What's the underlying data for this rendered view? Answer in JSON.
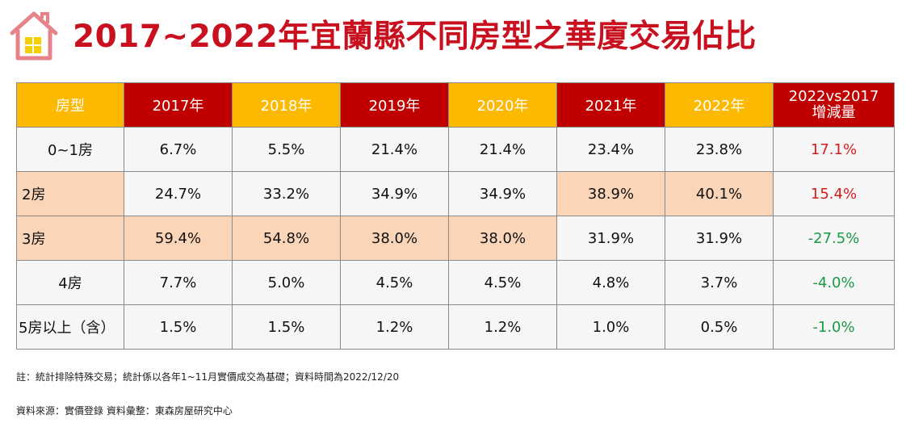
{
  "title": "2017~2022年宜蘭縣不同房型之華廈交易佔比",
  "colors": {
    "title_red": "#c8101e",
    "header_gold": "#fdb900",
    "header_red": "#c00000",
    "highlight": "#fbd5b8",
    "increase": "#d61c1c",
    "decrease": "#1a9a45"
  },
  "table": {
    "headers": [
      "房型",
      "2017年",
      "2018年",
      "2019年",
      "2020年",
      "2021年",
      "2022年"
    ],
    "change_header": [
      "2022vs2017",
      "增減量"
    ],
    "rows": [
      {
        "type": "0~1房",
        "values": [
          "6.7%",
          "5.5%",
          "21.4%",
          "21.4%",
          "23.4%",
          "23.8%"
        ],
        "change": "17.1%"
      },
      {
        "type": "2房",
        "values": [
          "24.7%",
          "33.2%",
          "34.9%",
          "34.9%",
          "38.9%",
          "40.1%"
        ],
        "change": "15.4%"
      },
      {
        "type": "3房",
        "values": [
          "59.4%",
          "54.8%",
          "38.0%",
          "38.0%",
          "31.9%",
          "31.9%"
        ],
        "change": "-27.5%"
      },
      {
        "type": "4房",
        "values": [
          "7.7%",
          "5.0%",
          "4.5%",
          "4.5%",
          "4.8%",
          "3.7%"
        ],
        "change": "-4.0%"
      },
      {
        "type": "5房以上（含）",
        "values": [
          "1.5%",
          "1.5%",
          "1.2%",
          "1.2%",
          "1.0%",
          "0.5%"
        ],
        "change": "-1.0%"
      }
    ]
  },
  "note": "註：統計排除特殊交易；統計係以各年1~11月實價成交為基礎；資料時間為2022/12/20",
  "source": "資料來源：實價登錄 資料彙整：東森房屋研究中心"
}
